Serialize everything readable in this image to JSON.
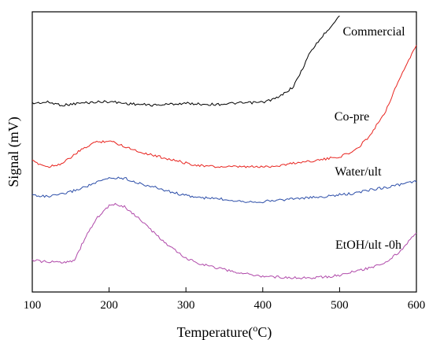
{
  "chart_data": {
    "type": "line",
    "xlabel": "Temperature(",
    "xlabel_sup": "o",
    "xlabel_unit": "C)",
    "ylabel": "Signal (mV)",
    "xlim": [
      100,
      600
    ],
    "xticks": [
      100,
      200,
      300,
      400,
      500,
      600
    ],
    "xtick_labels": [
      "100",
      "200",
      "300",
      "400",
      "500",
      "600"
    ],
    "yticks_shown": false,
    "grid": false,
    "series": [
      {
        "name": "Commercial",
        "color": "#000000",
        "x": [
          100,
          120,
          140,
          160,
          180,
          200,
          220,
          240,
          260,
          280,
          300,
          320,
          340,
          360,
          380,
          400,
          420,
          440,
          450,
          460,
          470,
          480,
          490,
          500
        ],
        "y": [
          5.05,
          5.08,
          5.0,
          5.05,
          5.08,
          5.1,
          5.05,
          5.02,
          5.0,
          5.03,
          5.05,
          5.03,
          5.02,
          5.05,
          5.06,
          5.08,
          5.2,
          5.5,
          5.9,
          6.35,
          6.65,
          6.9,
          7.15,
          7.4
        ]
      },
      {
        "name": "Co-pre",
        "color": "#e8231e",
        "x": [
          100,
          120,
          140,
          160,
          180,
          200,
          220,
          240,
          260,
          280,
          300,
          320,
          340,
          360,
          380,
          400,
          420,
          440,
          460,
          480,
          500,
          520,
          540,
          560,
          580,
          600
        ],
        "y": [
          3.5,
          3.35,
          3.45,
          3.75,
          4.0,
          4.05,
          3.9,
          3.75,
          3.65,
          3.55,
          3.45,
          3.38,
          3.35,
          3.35,
          3.35,
          3.35,
          3.38,
          3.45,
          3.5,
          3.55,
          3.62,
          3.78,
          4.2,
          4.85,
          5.8,
          6.6
        ]
      },
      {
        "name": "Water/ult",
        "color": "#2b4da8",
        "x": [
          100,
          120,
          140,
          160,
          180,
          200,
          220,
          240,
          260,
          280,
          300,
          320,
          340,
          360,
          380,
          400,
          420,
          440,
          460,
          480,
          500,
          520,
          540,
          560,
          580,
          600
        ],
        "y": [
          2.6,
          2.55,
          2.62,
          2.75,
          2.9,
          3.05,
          3.05,
          2.9,
          2.8,
          2.68,
          2.58,
          2.52,
          2.5,
          2.46,
          2.42,
          2.42,
          2.46,
          2.5,
          2.52,
          2.55,
          2.6,
          2.64,
          2.74,
          2.8,
          2.88,
          2.96
        ]
      },
      {
        "name": "EtOH/ult -0h",
        "color": "#b04aaa",
        "x": [
          100,
          120,
          140,
          155,
          170,
          185,
          200,
          210,
          220,
          240,
          260,
          280,
          300,
          320,
          340,
          360,
          380,
          400,
          420,
          440,
          460,
          480,
          500,
          520,
          540,
          560,
          580,
          600
        ],
        "y": [
          0.85,
          0.8,
          0.8,
          0.85,
          1.5,
          2.0,
          2.3,
          2.35,
          2.28,
          1.95,
          1.55,
          1.2,
          0.9,
          0.75,
          0.65,
          0.55,
          0.48,
          0.42,
          0.4,
          0.38,
          0.38,
          0.4,
          0.45,
          0.55,
          0.65,
          0.8,
          1.1,
          1.6
        ]
      }
    ]
  }
}
